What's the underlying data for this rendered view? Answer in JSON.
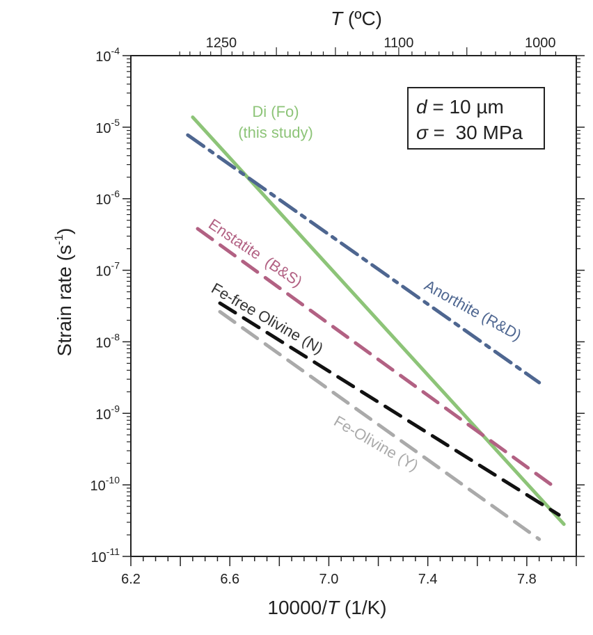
{
  "chart_data": {
    "type": "line",
    "xlabel": {
      "prefix": "10000/",
      "var": "T",
      "suffix": " (1/K)"
    },
    "x2label": {
      "var": "T",
      "suffix": " (ºC)"
    },
    "ylabel": {
      "main": "Strain rate (s",
      "sup": "-1",
      "close": ")"
    },
    "xlim": [
      6.2,
      8.0
    ],
    "ylim": [
      -11,
      -4
    ],
    "yscale": "log",
    "x_ticks": [
      "6.2",
      "6.6",
      "7.0",
      "7.4",
      "7.8"
    ],
    "x2_ticks": [
      {
        "label": "1250",
        "T_C": 1250
      },
      {
        "label": "1100",
        "T_C": 1100
      },
      {
        "label": "1000",
        "T_C": 1000
      }
    ],
    "y_ticks": [
      {
        "exp": -4,
        "base": "10",
        "sup": "-4"
      },
      {
        "exp": -5,
        "base": "10",
        "sup": "-5"
      },
      {
        "exp": -6,
        "base": "10",
        "sup": "-6"
      },
      {
        "exp": -7,
        "base": "10",
        "sup": "-7"
      },
      {
        "exp": -8,
        "base": "10",
        "sup": "-8"
      },
      {
        "exp": -9,
        "base": "10",
        "sup": "-9"
      },
      {
        "exp": -10,
        "base": "10",
        "sup": "-10"
      },
      {
        "exp": -11,
        "base": "10",
        "sup": "-11"
      }
    ],
    "conditions": {
      "d": {
        "var": "d",
        "rest": " = 10 µm"
      },
      "sigma": {
        "var": "σ",
        "rest": " =  30 MPa"
      }
    },
    "series": [
      {
        "id": "di",
        "name_lines": [
          "Di (Fo)",
          "(this study)"
        ],
        "color": "#8dc478",
        "style": "solid",
        "x": [
          6.45,
          7.95
        ],
        "log_y": [
          -4.86,
          -10.55
        ]
      },
      {
        "id": "anorthite",
        "name_lines": [
          "Anorthite (R&D)"
        ],
        "color": "#4e6690",
        "style": "dashdot",
        "x": [
          6.43,
          7.85
        ],
        "log_y": [
          -5.11,
          -8.57
        ]
      },
      {
        "id": "enstatite",
        "name_lines": [
          "Enstatite  (B&S)"
        ],
        "color": "#b26183",
        "style": "dashed",
        "x": [
          6.47,
          7.9
        ],
        "log_y": [
          -6.42,
          -10.0
        ]
      },
      {
        "id": "fe-free-olivine",
        "name_lines": [
          "Fe-free Olivine (N)"
        ],
        "color": "#111111",
        "style": "dashed",
        "x": [
          6.56,
          7.93
        ],
        "log_y": [
          -7.46,
          -10.42
        ]
      },
      {
        "id": "fe-olivine",
        "name_lines": [
          "Fe-Olivine (Y)"
        ],
        "color": "#aaaaaa",
        "style": "dashed",
        "x": [
          6.56,
          7.85
        ],
        "log_y": [
          -7.58,
          -10.76
        ]
      }
    ]
  }
}
